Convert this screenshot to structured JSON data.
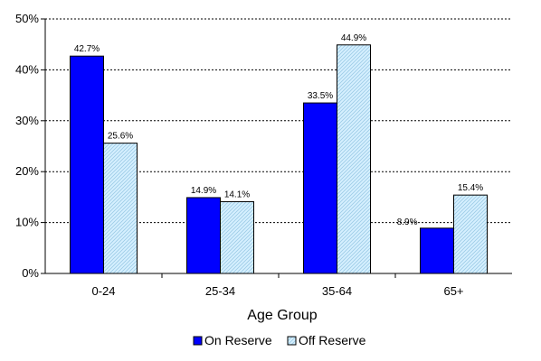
{
  "chart_data": {
    "type": "bar",
    "title": "",
    "xlabel": "Age Group",
    "ylabel": "",
    "categories": [
      "0-24",
      "25-34",
      "35-64",
      "65+"
    ],
    "series": [
      {
        "name": "On Reserve",
        "values": [
          42.7,
          14.9,
          33.5,
          8.9
        ],
        "labels": [
          "42.7%",
          "14.9%",
          "33.5%",
          "8.9%"
        ],
        "color": "#0000FF"
      },
      {
        "name": "Off Reserve",
        "values": [
          25.6,
          14.1,
          44.9,
          15.4
        ],
        "labels": [
          "25.6%",
          "14.1%",
          "44.9%",
          "15.4%"
        ],
        "color": "#CCEEFF"
      }
    ],
    "ylim": [
      0,
      50
    ],
    "yticks": [
      0,
      10,
      20,
      30,
      40,
      50
    ],
    "ytick_labels": [
      "0%",
      "10%",
      "20%",
      "30%",
      "40%",
      "50%"
    ],
    "grid": "horizontal dashed",
    "legend": "bottom-center"
  }
}
